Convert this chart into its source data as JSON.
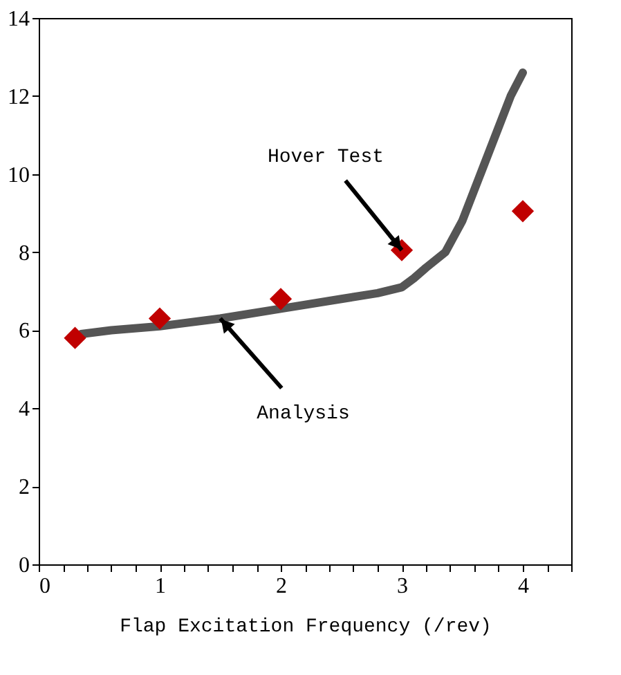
{
  "chart_data": {
    "type": "line",
    "xlabel": "Flap Excitation Frequency (/rev)",
    "xlim": [
      0,
      4.4
    ],
    "ylim": [
      0,
      14
    ],
    "xticks": [
      0,
      {
        "value": 0.2,
        "label": null
      },
      {
        "value": 0.4,
        "label": null
      },
      {
        "value": 0.6,
        "label": null
      },
      {
        "value": 0.8,
        "label": null
      },
      1,
      {
        "value": 1.2,
        "label": null
      },
      {
        "value": 1.4,
        "label": null
      },
      {
        "value": 1.6,
        "label": null
      },
      {
        "value": 1.8,
        "label": null
      },
      2,
      {
        "value": 2.2,
        "label": null
      },
      {
        "value": 2.4,
        "label": null
      },
      {
        "value": 2.6,
        "label": null
      },
      {
        "value": 2.8,
        "label": null
      },
      3,
      {
        "value": 3.2,
        "label": null
      },
      {
        "value": 3.4,
        "label": null
      },
      {
        "value": 3.6,
        "label": null
      },
      {
        "value": 3.8,
        "label": null
      },
      4,
      {
        "value": 4.2,
        "label": null
      },
      {
        "value": 4.4,
        "label": null
      }
    ],
    "yticks": [
      0,
      2,
      4,
      6,
      8,
      10,
      12,
      14
    ],
    "grid": false,
    "line_style": "solid",
    "series": [
      {
        "type": "line",
        "color": "#555555",
        "marker": "none",
        "x": [
          0.35,
          0.6,
          1.0,
          1.5,
          2.0,
          2.5,
          2.8,
          3.0,
          3.1,
          3.2,
          3.36,
          3.5,
          3.65,
          3.8,
          3.9,
          4.0
        ],
        "values": [
          5.9,
          6.0,
          6.1,
          6.3,
          6.55,
          6.8,
          6.95,
          7.1,
          7.33,
          7.6,
          8.0,
          8.8,
          10.0,
          11.2,
          12.0,
          12.6
        ]
      },
      {
        "type": "scatter",
        "color": "#c00000",
        "marker": "diamond",
        "x": [
          0.3,
          1,
          2,
          3,
          4
        ],
        "values": [
          5.8,
          6.3,
          6.8,
          8.05,
          9.05
        ]
      }
    ],
    "annotations": [
      {
        "text": "Hover Test",
        "x": 3,
        "y": 8.05
      },
      {
        "text": "Analysis",
        "x": 1.5,
        "y": 6.3
      }
    ]
  }
}
